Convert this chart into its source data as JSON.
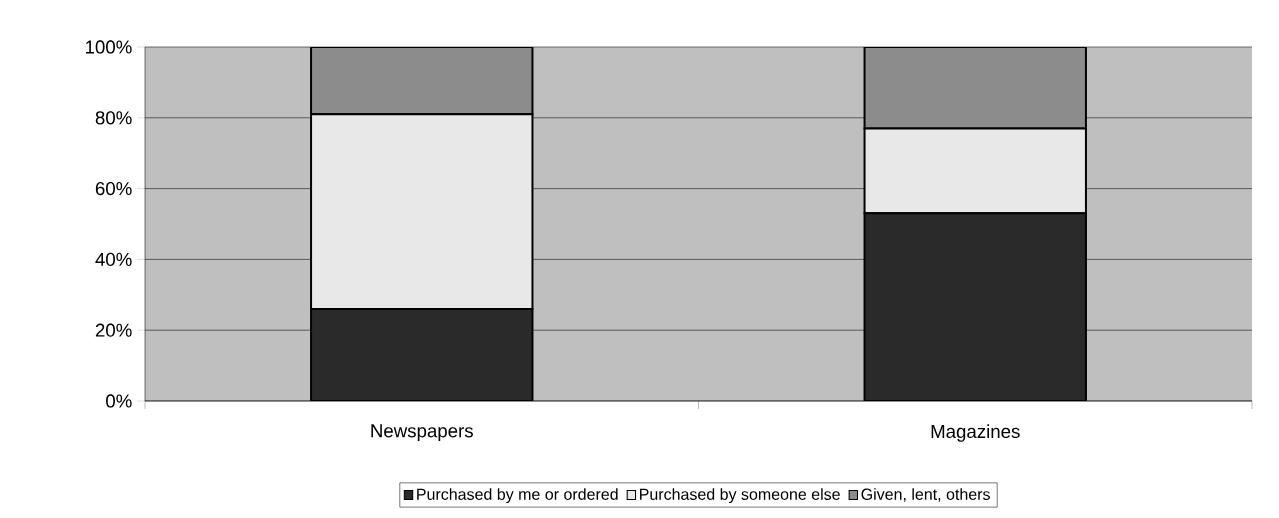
{
  "chart_data": {
    "type": "bar",
    "stacked": true,
    "categories": [
      "Newspapers",
      "Magazines"
    ],
    "series": [
      {
        "name": "Purchased by me or ordered",
        "color": "#2a2a2a",
        "values": [
          26,
          53
        ]
      },
      {
        "name": "Purchased by someone else",
        "color": "#e8e8e8",
        "values": [
          55,
          24
        ]
      },
      {
        "name": "Given, lent, others",
        "color": "#8c8c8c",
        "values": [
          19,
          23
        ]
      }
    ],
    "ylim": [
      0,
      100
    ],
    "yticks": [
      {
        "value": 0,
        "label": "0%"
      },
      {
        "value": 20,
        "label": "20%"
      },
      {
        "value": 40,
        "label": "40%"
      },
      {
        "value": 60,
        "label": "60%"
      },
      {
        "value": 80,
        "label": "80%"
      },
      {
        "value": 100,
        "label": "100%"
      }
    ],
    "grid": "y",
    "legend": "bottom"
  }
}
